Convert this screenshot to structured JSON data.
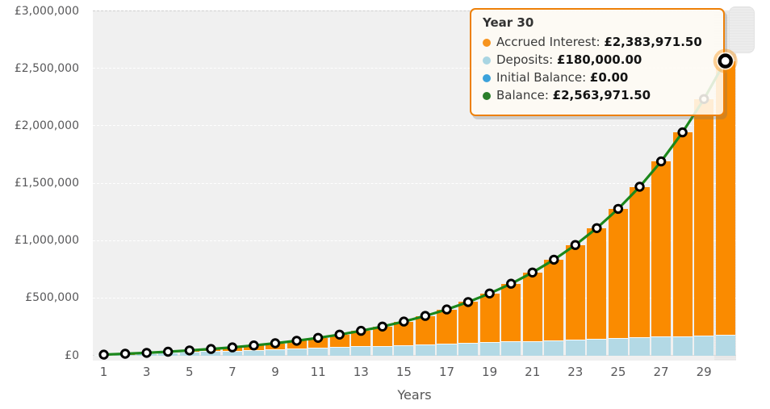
{
  "tooltip": {
    "title": "Year 30",
    "rows": [
      {
        "label": "Accrued Interest",
        "value": "£2,383,971.50",
        "bullet_color": "#F7941E"
      },
      {
        "label": "Deposits",
        "value": "£180,000.00",
        "bullet_color": "#A9D5E2"
      },
      {
        "label": "Initial Balance",
        "value": "£0.00",
        "bullet_color": "#3BA2DB"
      },
      {
        "label": "Balance",
        "value": "£2,563,971.50",
        "bullet_color": "#2A7E2A"
      }
    ]
  },
  "colors": {
    "accrued_interest": "#FA8B00",
    "deposits": "#B3D9E5",
    "initial_balance": "#3BA2DB",
    "balance_line": "#1B871B",
    "marker_fill": "#FFFFFF",
    "marker_stroke": "#000000",
    "halo": "rgba(250,139,0,0.38)",
    "tooltip_border": "#ED8008",
    "plot_background": "#F0F0F0"
  },
  "chart_data": {
    "type": "bar",
    "subtype": "stacked-columns-with-line",
    "title": "",
    "xlabel": "Years",
    "ylabel": "",
    "ylim": [
      0,
      3000000
    ],
    "grid": true,
    "x": [
      1,
      2,
      3,
      4,
      5,
      6,
      7,
      8,
      9,
      10,
      11,
      12,
      13,
      14,
      15,
      16,
      17,
      18,
      19,
      20,
      21,
      22,
      23,
      24,
      25,
      26,
      27,
      28,
      29,
      30
    ],
    "x_tick_labels": [
      "1",
      "3",
      "5",
      "7",
      "9",
      "11",
      "13",
      "15",
      "17",
      "19",
      "21",
      "23",
      "25",
      "27",
      "29"
    ],
    "y_tick_labels": [
      "£3,000,000",
      "£2,500,000",
      "£2,000,000",
      "£1,500,000",
      "£1,000,000",
      "£500,000",
      "£0"
    ],
    "hovered_x": 30,
    "series": [
      {
        "name": "Accrued Interest",
        "type": "column-stack-top",
        "color": "#FA8B00",
        "values": [
          391,
          1715,
          4109,
          7727,
          12748,
          19378,
          27852,
          38438,
          51444,
          67223,
          86179,
          108776,
          135545,
          167098,
          204132,
          247447,
          297971,
          356732,
          424944,
          503987,
          595440,
          701116,
          823089,
          963739,
          1125795,
          1312374,
          1527058,
          1773952,
          2057756,
          2383971.5
        ]
      },
      {
        "name": "Deposits",
        "type": "column-stack-bottom",
        "color": "#B3D9E5",
        "values": [
          6000,
          12000,
          18000,
          24000,
          30000,
          36000,
          42000,
          48000,
          54000,
          60000,
          66000,
          72000,
          78000,
          84000,
          90000,
          96000,
          102000,
          108000,
          114000,
          120000,
          126000,
          132000,
          138000,
          144000,
          150000,
          156000,
          162000,
          168000,
          174000,
          180000
        ]
      },
      {
        "name": "Initial Balance",
        "type": "column",
        "color": "#3BA2DB",
        "values": [
          0,
          0,
          0,
          0,
          0,
          0,
          0,
          0,
          0,
          0,
          0,
          0,
          0,
          0,
          0,
          0,
          0,
          0,
          0,
          0,
          0,
          0,
          0,
          0,
          0,
          0,
          0,
          0,
          0,
          0
        ]
      },
      {
        "name": "Balance",
        "type": "line",
        "color": "#1B871B",
        "values": [
          6391,
          13715,
          22109,
          31727,
          42748,
          55378,
          69852,
          86438,
          105444,
          127223,
          152179,
          180776,
          213545,
          251098,
          294132,
          343447,
          399971,
          464732,
          538944,
          623987,
          721440,
          833116,
          961089,
          1107739,
          1275795,
          1468374,
          1689058,
          1941952,
          2231756,
          2563971.5
        ]
      }
    ]
  }
}
